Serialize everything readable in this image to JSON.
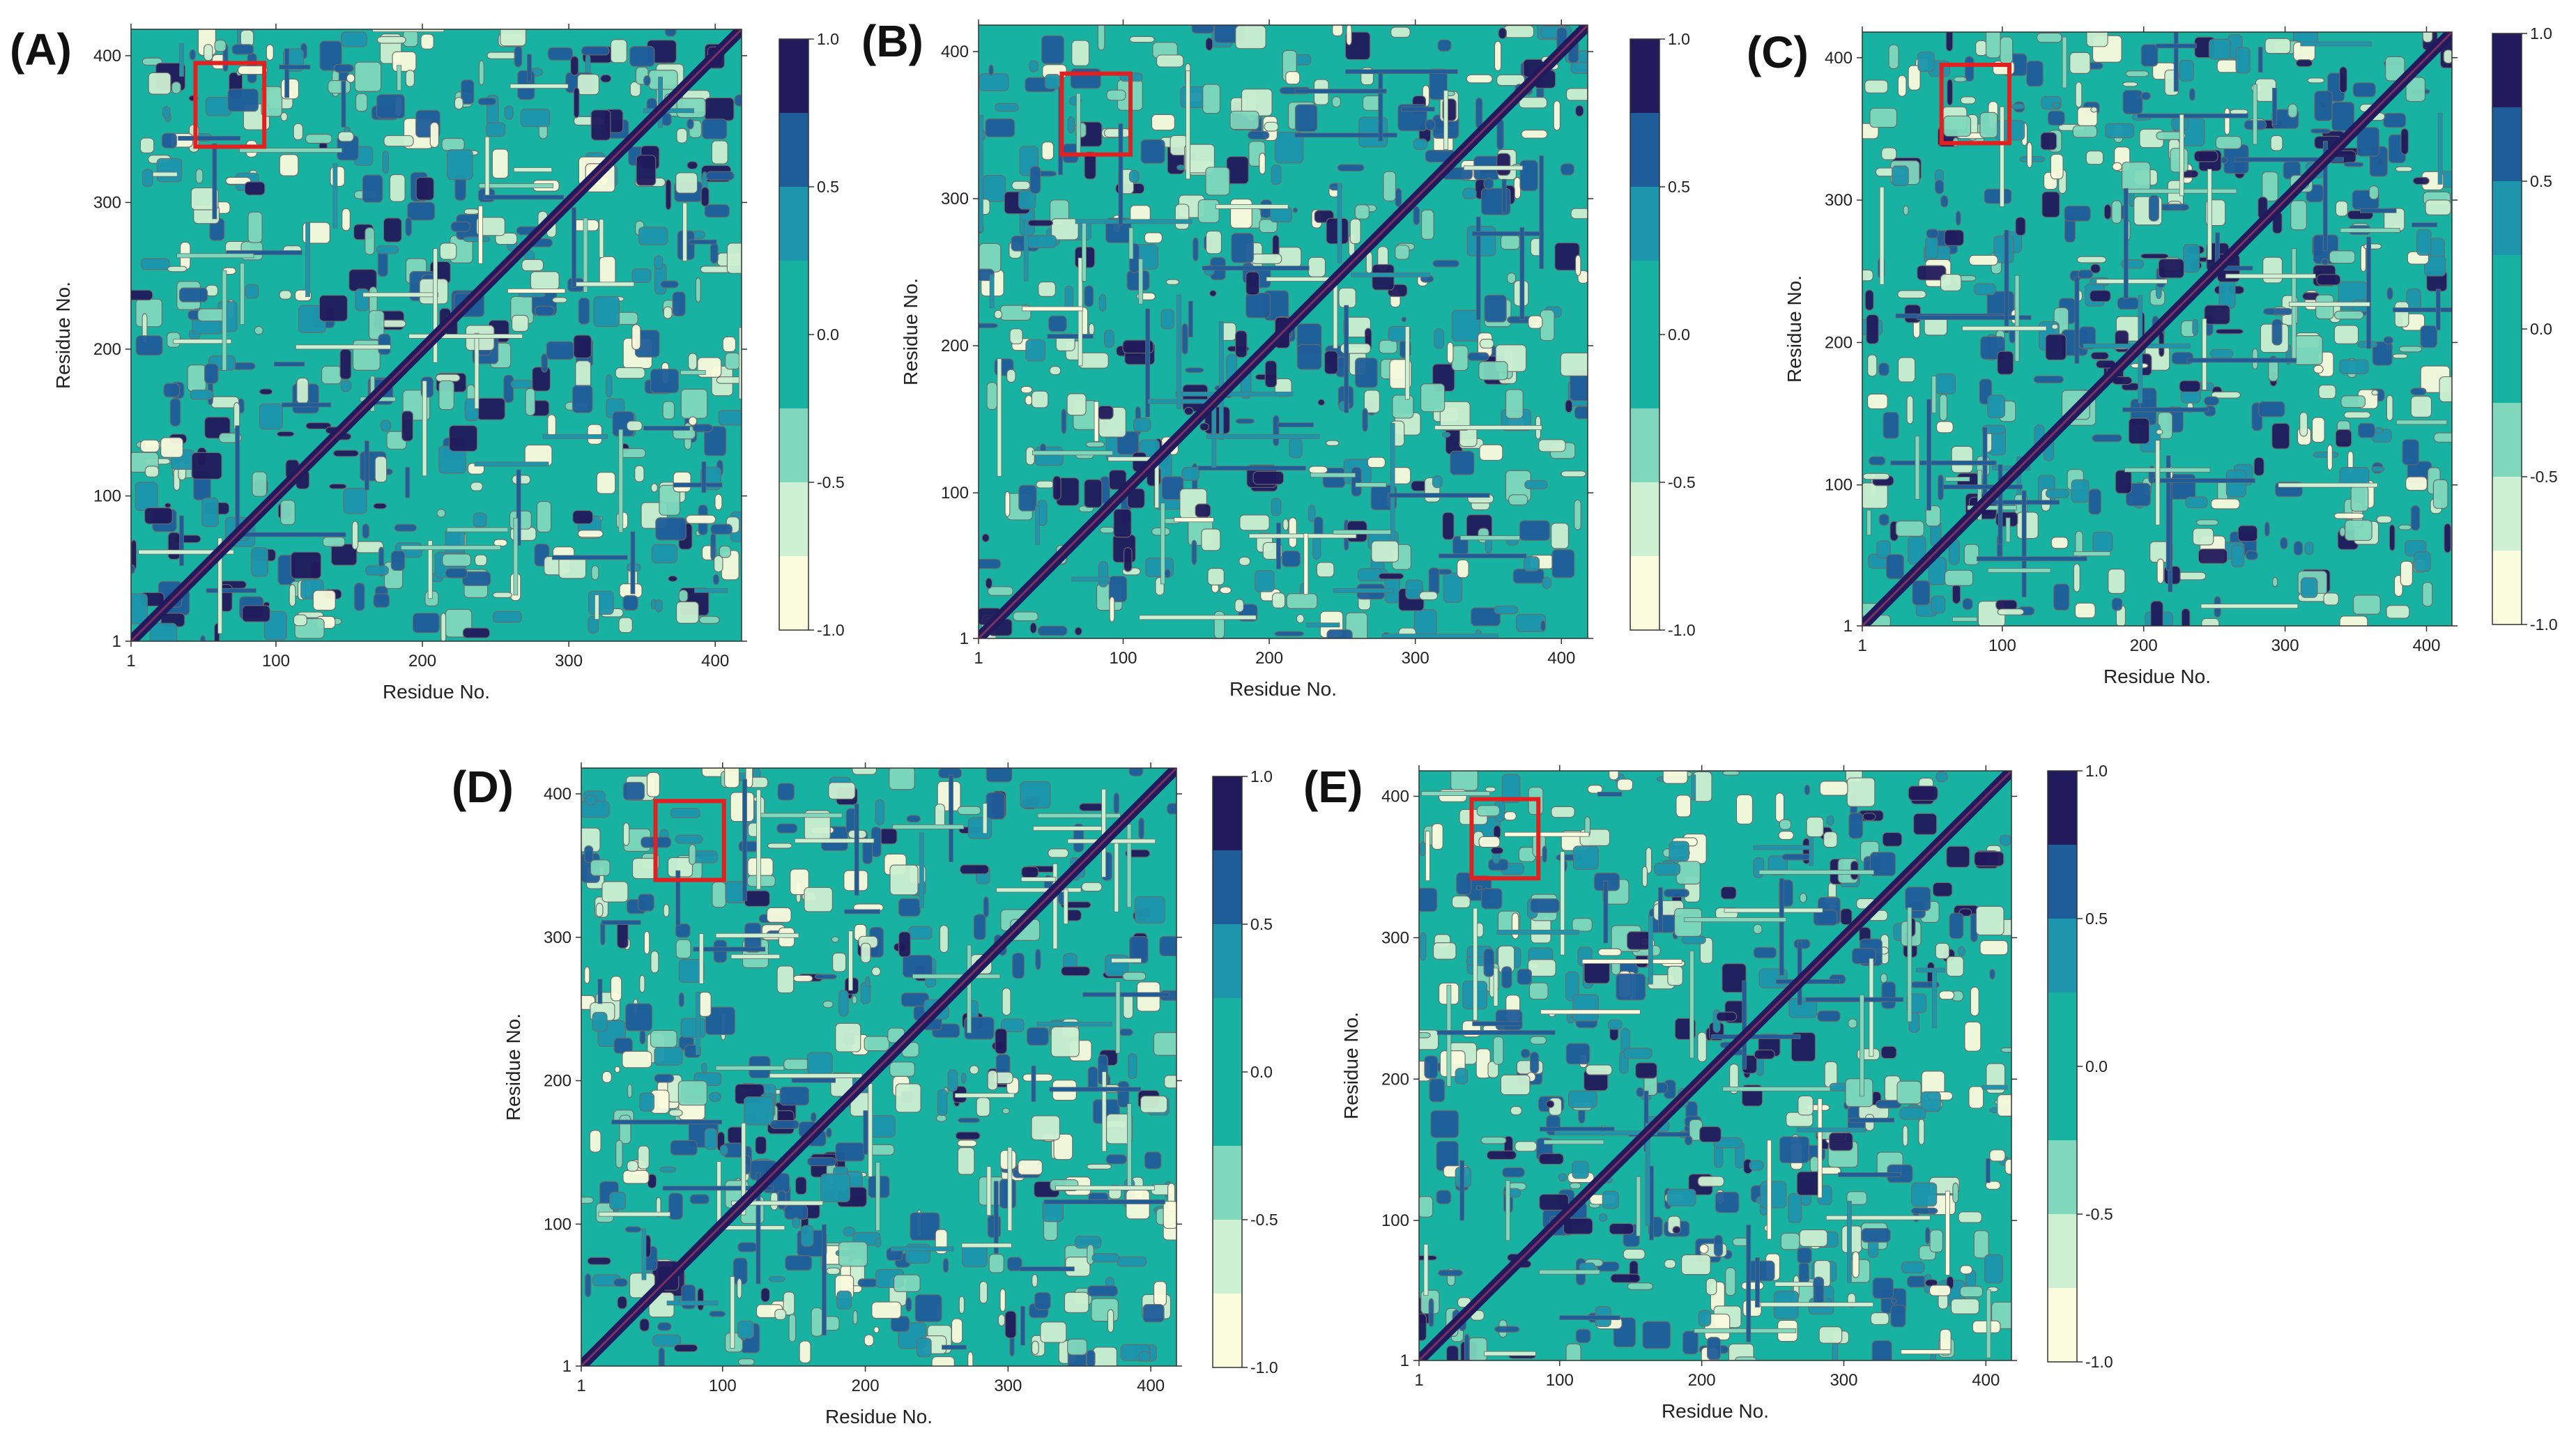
{
  "figure": {
    "colors": {
      "background_level": "#17b2a2",
      "levels": [
        "#fbfbde",
        "#cdf0d2",
        "#7fd8bc",
        "#17b2a2",
        "#1c95ad",
        "#1f5d9a",
        "#211a5c"
      ],
      "contour_line": "#6b6b6b",
      "diagonal": "#7a3060",
      "highlight_box": "#e41f1f",
      "axis": "#333333",
      "text": "#222222"
    }
  },
  "chart_data": [
    {
      "type": "heatmap",
      "panel": "(A)",
      "title": "",
      "xlabel": "Residue No.",
      "ylabel": "Residue No.",
      "xlim": [
        1,
        418
      ],
      "ylim": [
        1,
        418
      ],
      "x_ticks": [
        "1",
        "100",
        "200",
        "300",
        "400"
      ],
      "y_ticks": [
        "1",
        "100",
        "200",
        "300",
        "400"
      ],
      "tick_values": [
        1,
        100,
        200,
        300,
        400
      ],
      "colorbar": {
        "range": [
          -1.0,
          1.0
        ],
        "tick_labels": [
          "1.0",
          "0.5",
          "0.0",
          "-0.5",
          "-1.0"
        ],
        "tick_values": [
          1.0,
          0.5,
          0.0,
          -0.5,
          -1.0
        ]
      },
      "highlight_region": {
        "x": [
          45,
          92
        ],
        "y": [
          338,
          395
        ]
      },
      "description_values": {
        "diagonal": 1.0
      }
    },
    {
      "type": "heatmap",
      "panel": "(B)",
      "title": "",
      "xlabel": "Residue No.",
      "ylabel": "Residue No.",
      "xlim": [
        1,
        418
      ],
      "ylim": [
        1,
        418
      ],
      "x_ticks": [
        "1",
        "100",
        "200",
        "300",
        "400"
      ],
      "y_ticks": [
        "1",
        "100",
        "200",
        "300",
        "400"
      ],
      "tick_values": [
        1,
        100,
        200,
        300,
        400
      ],
      "colorbar": {
        "range": [
          -1.0,
          1.0
        ],
        "tick_labels": [
          "1.0",
          "0.5",
          "0.0",
          "-0.5",
          "-1.0"
        ],
        "tick_values": [
          1.0,
          0.5,
          0.0,
          -0.5,
          -1.0
        ]
      },
      "highlight_region": {
        "x": [
          58,
          105
        ],
        "y": [
          330,
          385
        ]
      },
      "description_values": {
        "diagonal": 1.0
      }
    },
    {
      "type": "heatmap",
      "panel": "(C)",
      "title": "",
      "xlabel": "Residue No.",
      "ylabel": "Residue No.",
      "xlim": [
        1,
        418
      ],
      "ylim": [
        1,
        418
      ],
      "x_ticks": [
        "1",
        "100",
        "200",
        "300",
        "400"
      ],
      "y_ticks": [
        "1",
        "100",
        "200",
        "300",
        "400"
      ],
      "tick_values": [
        1,
        100,
        200,
        300,
        400
      ],
      "colorbar": {
        "range": [
          -1.0,
          1.0
        ],
        "tick_labels": [
          "1.0",
          "0.5",
          "0.0",
          "-0.5",
          "-1.0"
        ],
        "tick_values": [
          1.0,
          0.5,
          0.0,
          -0.5,
          -1.0
        ]
      },
      "highlight_region": {
        "x": [
          57,
          105
        ],
        "y": [
          340,
          395
        ]
      },
      "description_values": {
        "diagonal": 1.0
      }
    },
    {
      "type": "heatmap",
      "panel": "(D)",
      "title": "",
      "xlabel": "Residue No.",
      "ylabel": "Residue No.",
      "xlim": [
        1,
        418
      ],
      "ylim": [
        1,
        418
      ],
      "x_ticks": [
        "1",
        "100",
        "200",
        "300",
        "400"
      ],
      "y_ticks": [
        "1",
        "100",
        "200",
        "300",
        "400"
      ],
      "tick_values": [
        1,
        100,
        200,
        300,
        400
      ],
      "colorbar": {
        "range": [
          -1.0,
          1.0
        ],
        "tick_labels": [
          "1.0",
          "0.5",
          "0.0",
          "-0.5",
          "-1.0"
        ],
        "tick_values": [
          1.0,
          0.5,
          0.0,
          -0.5,
          -1.0
        ]
      },
      "highlight_region": {
        "x": [
          53,
          101
        ],
        "y": [
          340,
          395
        ]
      },
      "description_values": {
        "diagonal": 1.0
      }
    },
    {
      "type": "heatmap",
      "panel": "(E)",
      "title": "",
      "xlabel": "Residue No.",
      "ylabel": "Residue No.",
      "xlim": [
        1,
        418
      ],
      "ylim": [
        1,
        418
      ],
      "x_ticks": [
        "1",
        "100",
        "200",
        "300",
        "400"
      ],
      "y_ticks": [
        "1",
        "100",
        "200",
        "300",
        "400"
      ],
      "tick_values": [
        1,
        100,
        200,
        300,
        400
      ],
      "colorbar": {
        "range": [
          -1.0,
          1.0
        ],
        "tick_labels": [
          "1.0",
          "0.5",
          "0.0",
          "-0.5",
          "-1.0"
        ],
        "tick_values": [
          1.0,
          0.5,
          0.0,
          -0.5,
          -1.0
        ]
      },
      "highlight_region": {
        "x": [
          38,
          85
        ],
        "y": [
          342,
          398
        ]
      },
      "description_values": {
        "diagonal": 1.0
      }
    }
  ]
}
